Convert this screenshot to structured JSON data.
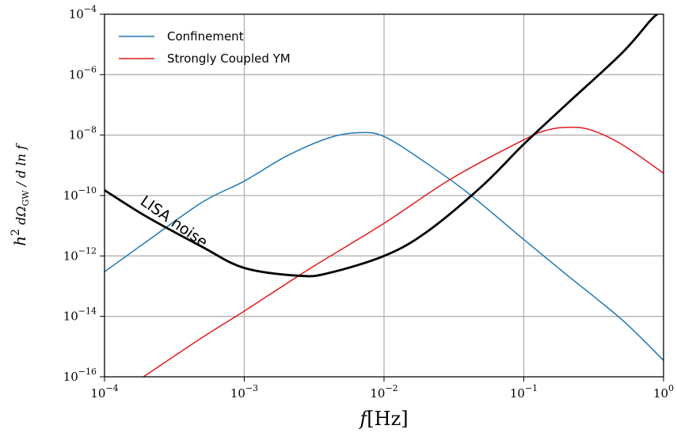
{
  "chart_data": {
    "type": "line",
    "xscale": "log",
    "yscale": "log",
    "xlim": [
      0.0001,
      1
    ],
    "ylim": [
      1e-16,
      0.0001
    ],
    "grid": true,
    "legend_placement": "top-left",
    "xlabel": "f[Hz]",
    "ylabel": "h²dΩGW/d ln f",
    "x_ticks": [
      {
        "base": "10",
        "exp": "−4",
        "value": 0.0001
      },
      {
        "base": "10",
        "exp": "−3",
        "value": 0.001
      },
      {
        "base": "10",
        "exp": "−2",
        "value": 0.01
      },
      {
        "base": "10",
        "exp": "−1",
        "value": 0.1
      },
      {
        "base": "10",
        "exp": "0",
        "value": 1
      }
    ],
    "y_ticks": [
      {
        "base": "10",
        "exp": "−16",
        "value": 1e-16
      },
      {
        "base": "10",
        "exp": "−14",
        "value": 1e-14
      },
      {
        "base": "10",
        "exp": "−12",
        "value": 1e-12
      },
      {
        "base": "10",
        "exp": "−10",
        "value": 1e-10
      },
      {
        "base": "10",
        "exp": "−8",
        "value": 1e-08
      },
      {
        "base": "10",
        "exp": "−6",
        "value": 1e-06
      },
      {
        "base": "10",
        "exp": "−4",
        "value": 0.0001
      }
    ],
    "series": [
      {
        "name": "Confinement",
        "color": "#1f77b4",
        "width": 1.5,
        "points": [
          [
            0.0001,
            3e-13
          ],
          [
            0.0002,
            3e-12
          ],
          [
            0.0005,
            6e-11
          ],
          [
            0.001,
            3e-10
          ],
          [
            0.002,
            2e-09
          ],
          [
            0.004,
            8e-09
          ],
          [
            0.0065,
            1.2e-08
          ],
          [
            0.01,
            9e-09
          ],
          [
            0.02,
            1.2e-09
          ],
          [
            0.04,
            1.2e-10
          ],
          [
            0.1,
            3.5e-12
          ],
          [
            0.2,
            2.5e-13
          ],
          [
            0.5,
            8e-15
          ],
          [
            1,
            3.5e-16
          ]
        ]
      },
      {
        "name": "Strongly Coupled YM",
        "color": "#e41a1c",
        "width": 1.5,
        "points": [
          [
            0.00019,
            1e-16
          ],
          [
            0.0005,
            2e-15
          ],
          [
            0.001,
            1.5e-14
          ],
          [
            0.003,
            4e-13
          ],
          [
            0.01,
            1.2e-11
          ],
          [
            0.03,
            3.5e-10
          ],
          [
            0.1,
            7e-09
          ],
          [
            0.15,
            1.5e-08
          ],
          [
            0.21,
            1.8e-08
          ],
          [
            0.3,
            1.5e-08
          ],
          [
            0.5,
            5e-09
          ],
          [
            1,
            5.5e-10
          ]
        ]
      },
      {
        "name": "",
        "color": "#000000",
        "width": 2.8,
        "points": [
          [
            0.0001,
            1.5e-10
          ],
          [
            0.0002,
            2e-11
          ],
          [
            0.0005,
            2e-12
          ],
          [
            0.001,
            4e-13
          ],
          [
            0.0025,
            2.2e-13
          ],
          [
            0.004,
            2.7e-13
          ],
          [
            0.01,
            1e-12
          ],
          [
            0.02,
            6e-12
          ],
          [
            0.05,
            2e-10
          ],
          [
            0.1,
            5e-09
          ],
          [
            0.2,
            1e-07
          ],
          [
            0.5,
            5e-06
          ],
          [
            0.8,
            6e-05
          ],
          [
            0.9,
            0.0001
          ]
        ]
      }
    ],
    "annotations": [
      {
        "text": "LISA noise",
        "x": 0.0003,
        "y": 1e-11,
        "angle": 35
      }
    ]
  }
}
